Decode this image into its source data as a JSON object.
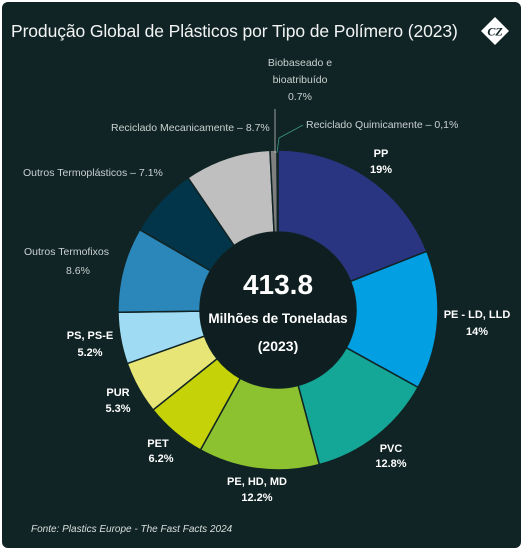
{
  "title": "Produção Global de Plásticos por Tipo de Polímero (2023)",
  "source": "Fonte:  Plastics Europe - The Fast Facts 2024",
  "logo_text": "CZ",
  "center": {
    "value": "413.8",
    "unit": "Milhões de Toneladas",
    "year": "(2023)"
  },
  "colors": {
    "background": "#112425",
    "center": "#0f1f21",
    "label_light": "#c9d0d0",
    "label_bold": "#ffffff"
  },
  "chart_data": {
    "type": "pie",
    "title": "Produção Global de Plásticos por Tipo de Polímero (2023)",
    "total": 413.8,
    "slices": [
      {
        "name": "PP",
        "pct_label": "19%",
        "value": 19.0,
        "color": "#293581",
        "bold": true
      },
      {
        "name": "PE - LD, LLD",
        "pct_label": "14%",
        "value": 14.0,
        "color": "#029fe2",
        "bold": true
      },
      {
        "name": "PVC",
        "pct_label": "12.8%",
        "value": 12.8,
        "color": "#14a697",
        "bold": true
      },
      {
        "name": "PE, HD, MD",
        "pct_label": "12.2%",
        "value": 12.2,
        "color": "#8cc12f",
        "bold": true
      },
      {
        "name": "PET",
        "pct_label": "6.2%",
        "value": 6.2,
        "color": "#c4d207",
        "bold": true
      },
      {
        "name": "PUR",
        "pct_label": "5.3%",
        "value": 5.3,
        "color": "#e6e576",
        "bold": true
      },
      {
        "name": "PS, PS-E",
        "pct_label": "5.2%",
        "value": 5.2,
        "color": "#a0dbf4",
        "bold": true
      },
      {
        "name": "Outros Termofixos",
        "pct_label": "8.6%",
        "value": 8.6,
        "color": "#2b86b9",
        "bold": false
      },
      {
        "name": "Outros Termoplásticos",
        "pct_label": "7.1%",
        "value": 7.1,
        "color": "#02354a",
        "bold": false
      },
      {
        "name": "Reciclado Mecanicamente",
        "pct_label": "8.7%",
        "value": 8.7,
        "color": "#bfbfbf",
        "bold": false
      },
      {
        "name": "Biobaseado e bioatribuído",
        "pct_label": "0.7%",
        "value": 0.7,
        "color": "#7f7f7f",
        "bold": false
      },
      {
        "name": "Reciclado Quimicamente",
        "pct_label": "0,1%",
        "value": 0.1,
        "color": "#3a9a86",
        "bold": false
      }
    ],
    "labels": {
      "pp": [
        "PP",
        "19%"
      ],
      "pe_ld": [
        "PE - LD, LLD",
        "14%"
      ],
      "pvc": [
        "PVC",
        "12.8%"
      ],
      "pe_hd": [
        "PE, HD, MD",
        "12.2%"
      ],
      "pet": [
        "PET",
        "6.2%"
      ],
      "pur": [
        "PUR",
        "5.3%"
      ],
      "ps": [
        "PS, PS-E",
        "5.2%"
      ],
      "termofixos": [
        "Outros Termofixos",
        "8.6%"
      ],
      "termoplasticos": "Outros Termoplásticos – 7.1%",
      "mecanico": "Reciclado Mecanicamente – 8.7%",
      "bio": [
        "Biobaseado e",
        "bioatribuído",
        "0.7%"
      ],
      "quimico": "Reciclado Quimicamente – 0,1%"
    }
  }
}
